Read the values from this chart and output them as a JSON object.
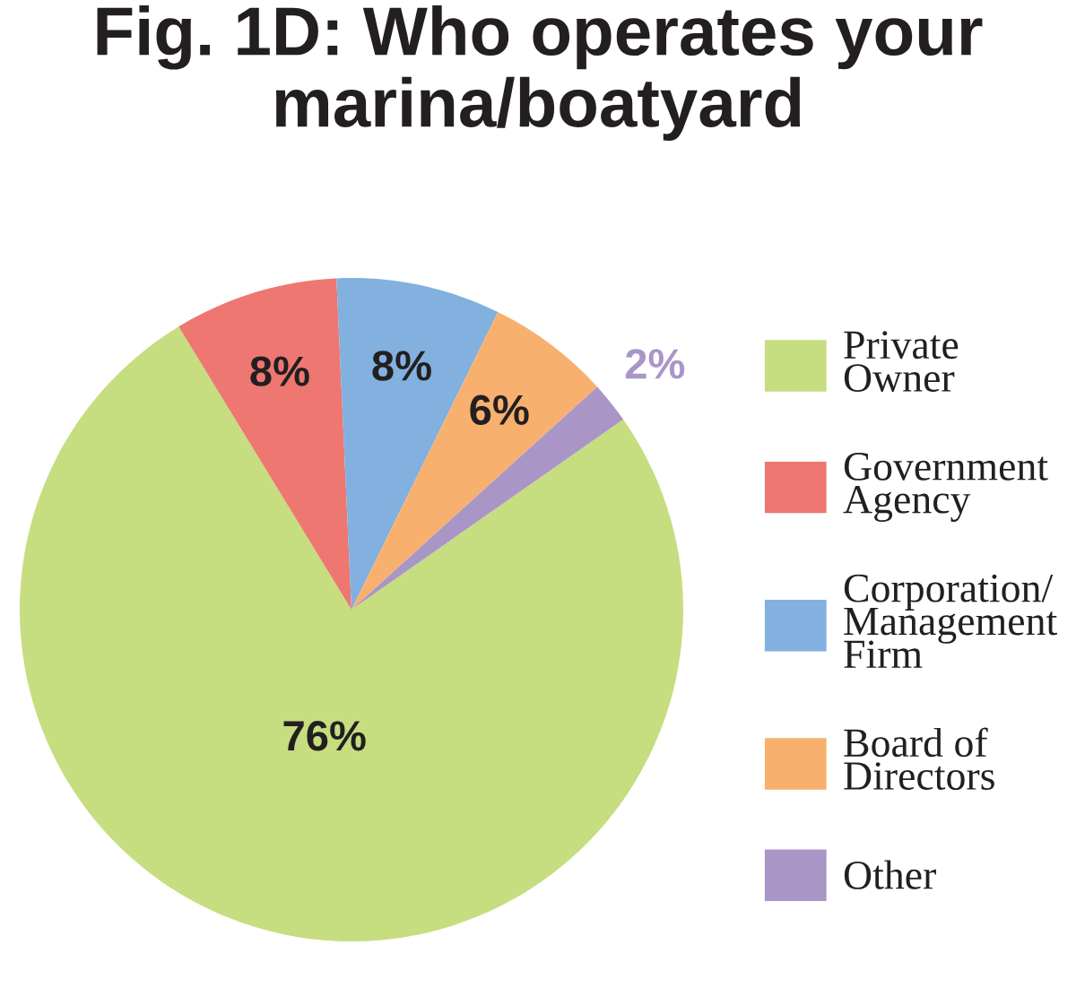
{
  "chart_data": {
    "type": "pie",
    "title": "Fig. 1D: Who operates your\nmarina/boatyard",
    "categories": [
      "Private\nOwner",
      "Government\nAgency",
      "Corporation/\nManagement\nFirm",
      "Board of\nDirectors",
      "Other"
    ],
    "values": [
      76,
      8,
      8,
      6,
      2
    ],
    "colors": [
      "#c6dd80",
      "#ee7771",
      "#82b0df",
      "#f8b06f",
      "#a996c6"
    ],
    "value_labels": [
      "76%",
      "8%",
      "8%",
      "6%",
      "2%"
    ],
    "legend": "right"
  }
}
